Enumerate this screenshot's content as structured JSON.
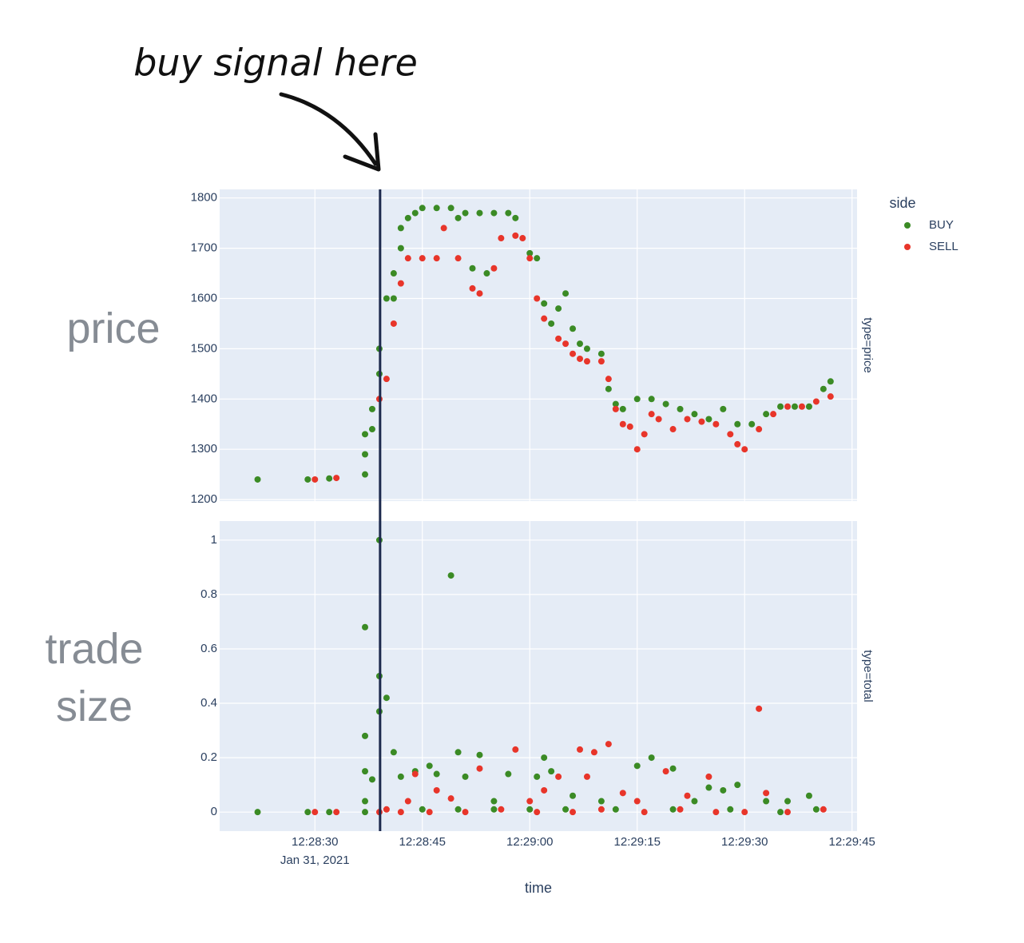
{
  "chart_data": [
    {
      "type": "scatter",
      "annotation": "buy signal here",
      "side_label": "price",
      "facet": "type=price",
      "legend_title": "side",
      "signal_x": "12:28:39.1",
      "xlim": [
        "12:28:16.7",
        "12:29:45.7"
      ],
      "ylim": [
        1197,
        1817
      ],
      "yticks": [
        1200,
        1300,
        1400,
        1500,
        1600,
        1700,
        1800
      ],
      "series": [
        {
          "name": "BUY",
          "color": "#3b8b25",
          "x": [
            "12:28:22",
            "12:28:29",
            "12:28:32",
            "12:28:37",
            "12:28:37",
            "12:28:37",
            "12:28:38",
            "12:28:38",
            "12:28:39",
            "12:28:39",
            "12:28:40",
            "12:28:41",
            "12:28:41",
            "12:28:42",
            "12:28:42",
            "12:28:43",
            "12:28:44",
            "12:28:45",
            "12:28:47",
            "12:28:49",
            "12:28:50",
            "12:28:51",
            "12:28:53",
            "12:28:55",
            "12:28:57",
            "12:28:58",
            "12:28:52",
            "12:28:54",
            "12:29:00",
            "12:29:01",
            "12:29:02",
            "12:29:03",
            "12:29:04",
            "12:29:05",
            "12:29:06",
            "12:29:07",
            "12:29:08",
            "12:29:10",
            "12:29:11",
            "12:29:12",
            "12:29:13",
            "12:29:15",
            "12:29:17",
            "12:29:19",
            "12:29:21",
            "12:29:23",
            "12:29:25",
            "12:29:27",
            "12:29:29",
            "12:29:31",
            "12:29:33",
            "12:29:35",
            "12:29:37",
            "12:29:39",
            "12:29:41",
            "12:29:42"
          ],
          "values": [
            1240,
            1240,
            1242,
            1250,
            1290,
            1330,
            1340,
            1380,
            1450,
            1500,
            1600,
            1600,
            1650,
            1700,
            1740,
            1760,
            1770,
            1780,
            1780,
            1780,
            1760,
            1770,
            1770,
            1770,
            1770,
            1760,
            1660,
            1650,
            1690,
            1680,
            1590,
            1550,
            1580,
            1610,
            1540,
            1510,
            1500,
            1490,
            1420,
            1390,
            1380,
            1400,
            1400,
            1390,
            1380,
            1370,
            1360,
            1380,
            1350,
            1350,
            1370,
            1385,
            1385,
            1385,
            1420,
            1435
          ]
        },
        {
          "name": "SELL",
          "color": "#e8352a",
          "x": [
            "12:28:30",
            "12:28:33",
            "12:28:39",
            "12:28:40",
            "12:28:41",
            "12:28:42",
            "12:28:43",
            "12:28:45",
            "12:28:47",
            "12:28:48",
            "12:28:50",
            "12:28:52",
            "12:28:53",
            "12:28:55",
            "12:28:56",
            "12:28:58",
            "12:28:59",
            "12:29:00",
            "12:29:01",
            "12:29:02",
            "12:29:04",
            "12:29:05",
            "12:29:06",
            "12:29:07",
            "12:29:08",
            "12:29:10",
            "12:29:11",
            "12:29:12",
            "12:29:13",
            "12:29:14",
            "12:29:15",
            "12:29:16",
            "12:29:17",
            "12:29:18",
            "12:29:20",
            "12:29:22",
            "12:29:24",
            "12:29:26",
            "12:29:28",
            "12:29:29",
            "12:29:30",
            "12:29:32",
            "12:29:34",
            "12:29:36",
            "12:29:38",
            "12:29:40",
            "12:29:42"
          ],
          "values": [
            1240,
            1243,
            1400,
            1440,
            1550,
            1630,
            1680,
            1680,
            1680,
            1740,
            1680,
            1620,
            1610,
            1660,
            1720,
            1725,
            1720,
            1680,
            1600,
            1560,
            1520,
            1510,
            1490,
            1480,
            1475,
            1475,
            1440,
            1380,
            1350,
            1345,
            1300,
            1330,
            1370,
            1360,
            1340,
            1360,
            1355,
            1350,
            1330,
            1310,
            1300,
            1340,
            1370,
            1385,
            1385,
            1395,
            1405
          ]
        }
      ]
    },
    {
      "type": "scatter",
      "side_label": "trade size",
      "facet": "type=total",
      "x_label": "time",
      "x_date_label": "Jan 31, 2021",
      "xlim": [
        "12:28:16.7",
        "12:29:45.7"
      ],
      "xticks": [
        "12:28:30",
        "12:28:45",
        "12:29:00",
        "12:29:15",
        "12:29:30",
        "12:29:45"
      ],
      "ylim": [
        -0.07,
        1.07
      ],
      "yticks": [
        0,
        0.2,
        0.4,
        0.6,
        0.8,
        1
      ],
      "series": [
        {
          "name": "BUY",
          "color": "#3b8b25",
          "x": [
            "12:28:22",
            "12:28:29",
            "12:28:32",
            "12:28:37",
            "12:28:37",
            "12:28:37",
            "12:28:37",
            "12:28:37",
            "12:28:38",
            "12:28:39",
            "12:28:39",
            "12:28:39",
            "12:28:40",
            "12:28:41",
            "12:28:42",
            "12:28:44",
            "12:28:46",
            "12:28:47",
            "12:28:49",
            "12:28:50",
            "12:28:51",
            "12:28:53",
            "12:28:55",
            "12:28:57",
            "12:29:02",
            "12:29:01",
            "12:29:03",
            "12:29:06",
            "12:29:10",
            "12:29:15",
            "12:29:17",
            "12:29:20",
            "12:29:23",
            "12:29:25",
            "12:29:27",
            "12:29:29",
            "12:29:33",
            "12:29:36",
            "12:29:39",
            "12:28:45",
            "12:28:50",
            "12:28:55",
            "12:29:00",
            "12:29:05",
            "12:29:12",
            "12:29:20",
            "12:29:28",
            "12:29:35",
            "12:29:40"
          ],
          "values": [
            0,
            0,
            0,
            0.68,
            0.28,
            0.15,
            0.04,
            0,
            0.12,
            0.5,
            0.37,
            1.0,
            0.42,
            0.22,
            0.13,
            0.15,
            0.17,
            0.14,
            0.87,
            0.22,
            0.13,
            0.21,
            0.04,
            0.14,
            0.2,
            0.13,
            0.15,
            0.06,
            0.04,
            0.17,
            0.2,
            0.16,
            0.04,
            0.09,
            0.08,
            0.1,
            0.04,
            0.04,
            0.06,
            0.01,
            0.01,
            0.01,
            0.01,
            0.01,
            0.01,
            0.01,
            0.01,
            0,
            0.01
          ]
        },
        {
          "name": "SELL",
          "color": "#e8352a",
          "x": [
            "12:28:30",
            "12:28:33",
            "12:28:39",
            "12:28:40",
            "12:28:43",
            "12:28:44",
            "12:28:47",
            "12:28:49",
            "12:28:53",
            "12:28:58",
            "12:29:00",
            "12:29:02",
            "12:29:04",
            "12:29:07",
            "12:29:08",
            "12:29:09",
            "12:29:11",
            "12:29:13",
            "12:29:15",
            "12:29:19",
            "12:29:22",
            "12:29:25",
            "12:29:32",
            "12:29:33",
            "12:28:42",
            "12:28:46",
            "12:28:51",
            "12:28:56",
            "12:29:01",
            "12:29:06",
            "12:29:10",
            "12:29:16",
            "12:29:21",
            "12:29:26",
            "12:29:30",
            "12:29:36",
            "12:29:41"
          ],
          "values": [
            0,
            0,
            0,
            0.01,
            0.04,
            0.14,
            0.08,
            0.05,
            0.16,
            0.23,
            0.04,
            0.08,
            0.13,
            0.23,
            0.13,
            0.22,
            0.25,
            0.07,
            0.04,
            0.15,
            0.06,
            0.13,
            0.38,
            0.07,
            0,
            0,
            0,
            0.01,
            0,
            0,
            0.01,
            0,
            0.01,
            0,
            0,
            0,
            0.01
          ]
        }
      ]
    }
  ]
}
